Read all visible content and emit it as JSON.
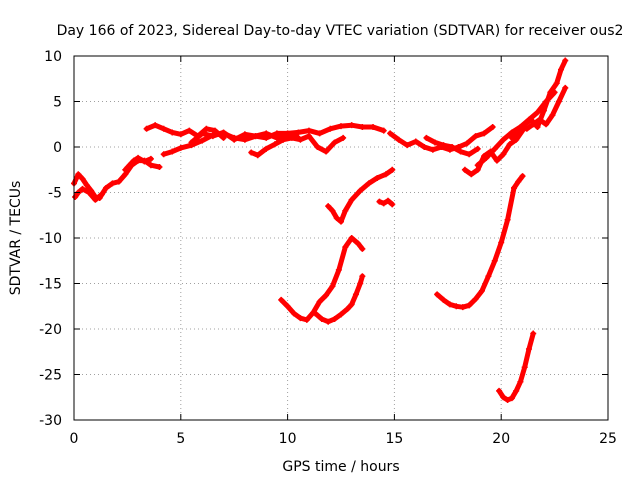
{
  "chart_data": {
    "type": "scatter",
    "title": "Day 166 of 2023, Sidereal Day-to-day VTEC variation (SDTVAR) for receiver ous2",
    "xlabel": "GPS time / hours",
    "ylabel": "SDTVAR / TECUs",
    "xlim": [
      0,
      25
    ],
    "ylim": [
      -30,
      10
    ],
    "xticks": [
      0,
      5,
      10,
      15,
      20,
      25
    ],
    "yticks": [
      -30,
      -25,
      -20,
      -15,
      -10,
      -5,
      0,
      5,
      10
    ],
    "xtick_labels": [
      "0",
      "5",
      "10",
      "15",
      "20",
      "25"
    ],
    "ytick_labels": [
      "-30",
      "-25",
      "-20",
      "-15",
      "-10",
      "-5",
      "0",
      "5",
      "10"
    ],
    "grid": true,
    "series_color": "#ff0000",
    "marker": "plus",
    "series": [
      {
        "name": "track-1",
        "x": [
          0.0,
          0.2,
          0.4,
          0.6,
          0.8,
          1.0,
          1.2,
          1.5,
          1.8,
          2.1,
          2.4,
          2.7,
          3.0,
          3.3,
          3.6,
          4.0
        ],
        "y": [
          -4.0,
          -3.0,
          -3.5,
          -4.2,
          -4.8,
          -5.5,
          -5.6,
          -4.5,
          -4.0,
          -3.8,
          -3.0,
          -2.0,
          -1.5,
          -1.5,
          -2.0,
          -2.2
        ]
      },
      {
        "name": "track-2",
        "x": [
          0.05,
          0.2,
          0.4,
          0.7,
          1.0,
          1.3
        ],
        "y": [
          -5.5,
          -5.0,
          -4.6,
          -5.0,
          -5.8,
          -5.2
        ]
      },
      {
        "name": "track-3",
        "x": [
          2.4,
          2.6,
          2.8,
          3.0,
          3.3,
          3.6
        ],
        "y": [
          -2.5,
          -2.0,
          -1.5,
          -1.2,
          -1.6,
          -1.3
        ]
      },
      {
        "name": "track-4",
        "x": [
          3.4,
          3.8,
          4.2,
          4.6,
          5.0,
          5.4,
          5.8,
          6.2,
          6.6,
          7.0
        ],
        "y": [
          2.0,
          2.4,
          2.0,
          1.6,
          1.4,
          1.8,
          1.2,
          2.0,
          1.8,
          1.0
        ]
      },
      {
        "name": "track-5",
        "x": [
          4.2,
          4.6,
          5.0,
          5.5,
          6.0,
          6.5,
          7.0,
          7.5,
          8.0,
          8.5,
          9.0,
          9.5,
          10.0,
          10.5
        ],
        "y": [
          -0.8,
          -0.5,
          -0.1,
          0.2,
          0.7,
          1.3,
          1.5,
          1.0,
          0.8,
          1.2,
          1.5,
          1.0,
          1.4,
          1.0
        ]
      },
      {
        "name": "track-6",
        "x": [
          5.5,
          6.0,
          6.5,
          7.0,
          7.5,
          8.0,
          8.5,
          9.0,
          9.5,
          10.0,
          10.5,
          11.0,
          11.5,
          12.0,
          12.5,
          13.0,
          13.5,
          14.0,
          14.5
        ],
        "y": [
          0.5,
          1.5,
          1.2,
          1.6,
          0.8,
          1.4,
          1.2,
          1.0,
          1.5,
          1.5,
          1.6,
          1.8,
          1.5,
          2.0,
          2.3,
          2.4,
          2.2,
          2.2,
          1.8
        ]
      },
      {
        "name": "track-7",
        "x": [
          8.3,
          8.6,
          9.0,
          9.4,
          9.8,
          10.2,
          10.6,
          11.0,
          11.4,
          11.8,
          12.2,
          12.6
        ],
        "y": [
          -0.6,
          -0.9,
          -0.2,
          0.3,
          0.8,
          1.0,
          0.8,
          1.2,
          0.0,
          -0.5,
          0.5,
          1.0
        ]
      },
      {
        "name": "track-8",
        "x": [
          9.7,
          10.0,
          10.3,
          10.6,
          10.9,
          11.2,
          11.5,
          11.8,
          12.1,
          12.4,
          12.7,
          13.0,
          13.3,
          13.5
        ],
        "y": [
          -16.8,
          -17.5,
          -18.3,
          -18.8,
          -19.0,
          -18.2,
          -17.0,
          -16.3,
          -15.3,
          -13.5,
          -11.0,
          -10.0,
          -10.6,
          -11.2
        ]
      },
      {
        "name": "track-9",
        "x": [
          11.3,
          11.6,
          11.9,
          12.2,
          12.5,
          12.8,
          13.0,
          13.2,
          13.4,
          13.5
        ],
        "y": [
          -18.3,
          -18.9,
          -19.2,
          -18.9,
          -18.4,
          -17.8,
          -17.3,
          -16.2,
          -15.0,
          -14.2
        ]
      },
      {
        "name": "track-10",
        "x": [
          11.9,
          12.1,
          12.3,
          12.5,
          12.7,
          13.0,
          13.4,
          13.8,
          14.2,
          14.6,
          14.9
        ],
        "y": [
          -6.5,
          -7.0,
          -7.8,
          -8.2,
          -7.0,
          -5.8,
          -4.8,
          -4.0,
          -3.4,
          -3.0,
          -2.5
        ]
      },
      {
        "name": "track-11",
        "x": [
          14.3,
          14.5,
          14.7,
          14.9
        ],
        "y": [
          -6.0,
          -6.2,
          -5.9,
          -6.3
        ]
      },
      {
        "name": "track-12",
        "x": [
          14.8,
          15.2,
          15.6,
          16.0,
          16.4,
          16.8,
          17.2,
          17.6,
          18.0,
          18.4,
          18.8,
          19.2,
          19.6
        ],
        "y": [
          1.5,
          0.8,
          0.2,
          0.6,
          0.0,
          -0.3,
          0.0,
          -0.3,
          0.0,
          0.4,
          1.2,
          1.5,
          2.2
        ]
      },
      {
        "name": "track-13",
        "x": [
          16.5,
          16.9,
          17.3,
          17.7,
          18.1,
          18.5,
          18.9
        ],
        "y": [
          1.0,
          0.5,
          0.2,
          0.0,
          -0.5,
          -0.8,
          -0.2
        ]
      },
      {
        "name": "track-14",
        "x": [
          17.0,
          17.3,
          17.6,
          17.9,
          18.2,
          18.5,
          18.8,
          19.1,
          19.4,
          19.7,
          20.0,
          20.3,
          20.6
        ],
        "y": [
          -16.2,
          -16.8,
          -17.3,
          -17.5,
          -17.6,
          -17.4,
          -16.7,
          -15.8,
          -14.2,
          -12.5,
          -10.5,
          -8.0,
          -4.5
        ]
      },
      {
        "name": "track-15",
        "x": [
          18.3,
          18.6,
          18.9,
          19.2,
          19.5,
          19.8,
          20.1,
          20.4,
          20.7,
          21.0
        ],
        "y": [
          -2.5,
          -3.0,
          -2.5,
          -1.0,
          -0.5,
          -1.5,
          -0.8,
          0.3,
          0.8,
          1.8
        ]
      },
      {
        "name": "track-16",
        "x": [
          18.9,
          19.3,
          19.7,
          20.1,
          20.5,
          20.9,
          21.3,
          21.7,
          22.1,
          22.5
        ],
        "y": [
          -2.0,
          -1.2,
          -0.2,
          0.8,
          1.6,
          2.2,
          3.0,
          3.8,
          5.0,
          6.0
        ]
      },
      {
        "name": "track-17",
        "x": [
          20.5,
          20.8,
          21.1,
          21.4,
          21.7,
          22.0,
          22.3,
          22.6,
          22.8,
          23.0
        ],
        "y": [
          1.0,
          1.5,
          2.5,
          3.0,
          2.2,
          4.0,
          6.0,
          7.0,
          8.5,
          9.5
        ]
      },
      {
        "name": "track-18",
        "x": [
          20.6,
          20.8,
          21.0
        ],
        "y": [
          -4.5,
          -3.8,
          -3.2
        ]
      },
      {
        "name": "track-19",
        "x": [
          21.2,
          21.5,
          21.8,
          22.1,
          22.4,
          22.7,
          23.0
        ],
        "y": [
          2.0,
          2.5,
          3.0,
          2.5,
          3.5,
          5.0,
          6.5
        ]
      },
      {
        "name": "track-20",
        "x": [
          19.9,
          20.1,
          20.3,
          20.5,
          20.7,
          20.9,
          21.1,
          21.3,
          21.5
        ],
        "y": [
          -26.8,
          -27.5,
          -27.8,
          -27.6,
          -26.8,
          -25.8,
          -24.2,
          -22.2,
          -20.5
        ]
      }
    ]
  }
}
